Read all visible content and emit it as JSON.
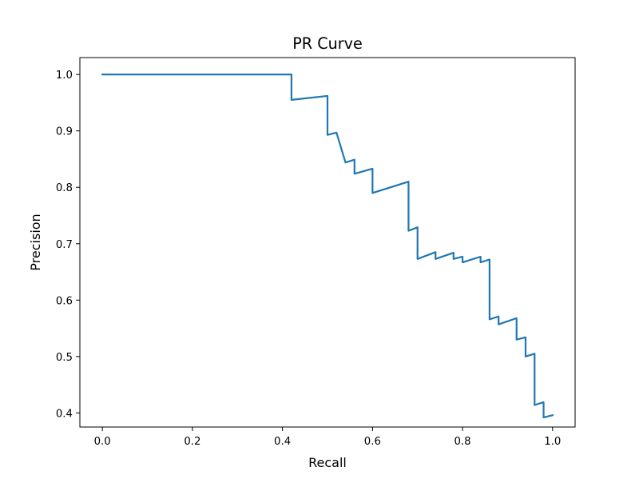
{
  "chart_data": {
    "type": "line",
    "title": "PR Curve",
    "xlabel": "Recall",
    "ylabel": "Precision",
    "xlim": [
      -0.05,
      1.05
    ],
    "ylim": [
      0.375,
      1.03
    ],
    "xticks": [
      0.0,
      0.2,
      0.4,
      0.6,
      0.8,
      1.0
    ],
    "xtick_labels": [
      "0.0",
      "0.2",
      "0.4",
      "0.6",
      "0.8",
      "1.0"
    ],
    "yticks": [
      0.4,
      0.5,
      0.6,
      0.7,
      0.8,
      0.9,
      1.0
    ],
    "ytick_labels": [
      "0.4",
      "0.5",
      "0.6",
      "0.7",
      "0.8",
      "0.9",
      "1.0"
    ],
    "grid": false,
    "legend": "none",
    "series": [
      {
        "color": "#1f77b4",
        "x": [
          0.0,
          0.42,
          0.42,
          0.5,
          0.5,
          0.52,
          0.54,
          0.56,
          0.56,
          0.6,
          0.6,
          0.68,
          0.68,
          0.7,
          0.7,
          0.74,
          0.74,
          0.78,
          0.78,
          0.8,
          0.8,
          0.84,
          0.84,
          0.86,
          0.86,
          0.88,
          0.88,
          0.92,
          0.92,
          0.94,
          0.94,
          0.96,
          0.96,
          0.98,
          0.98,
          1.0
        ],
        "y": [
          1.0,
          1.0,
          0.955,
          0.962,
          0.893,
          0.897,
          0.844,
          0.849,
          0.824,
          0.833,
          0.79,
          0.81,
          0.723,
          0.729,
          0.673,
          0.685,
          0.673,
          0.684,
          0.673,
          0.677,
          0.667,
          0.677,
          0.667,
          0.672,
          0.566,
          0.571,
          0.557,
          0.568,
          0.53,
          0.534,
          0.5,
          0.505,
          0.414,
          0.419,
          0.392,
          0.396
        ]
      }
    ]
  }
}
